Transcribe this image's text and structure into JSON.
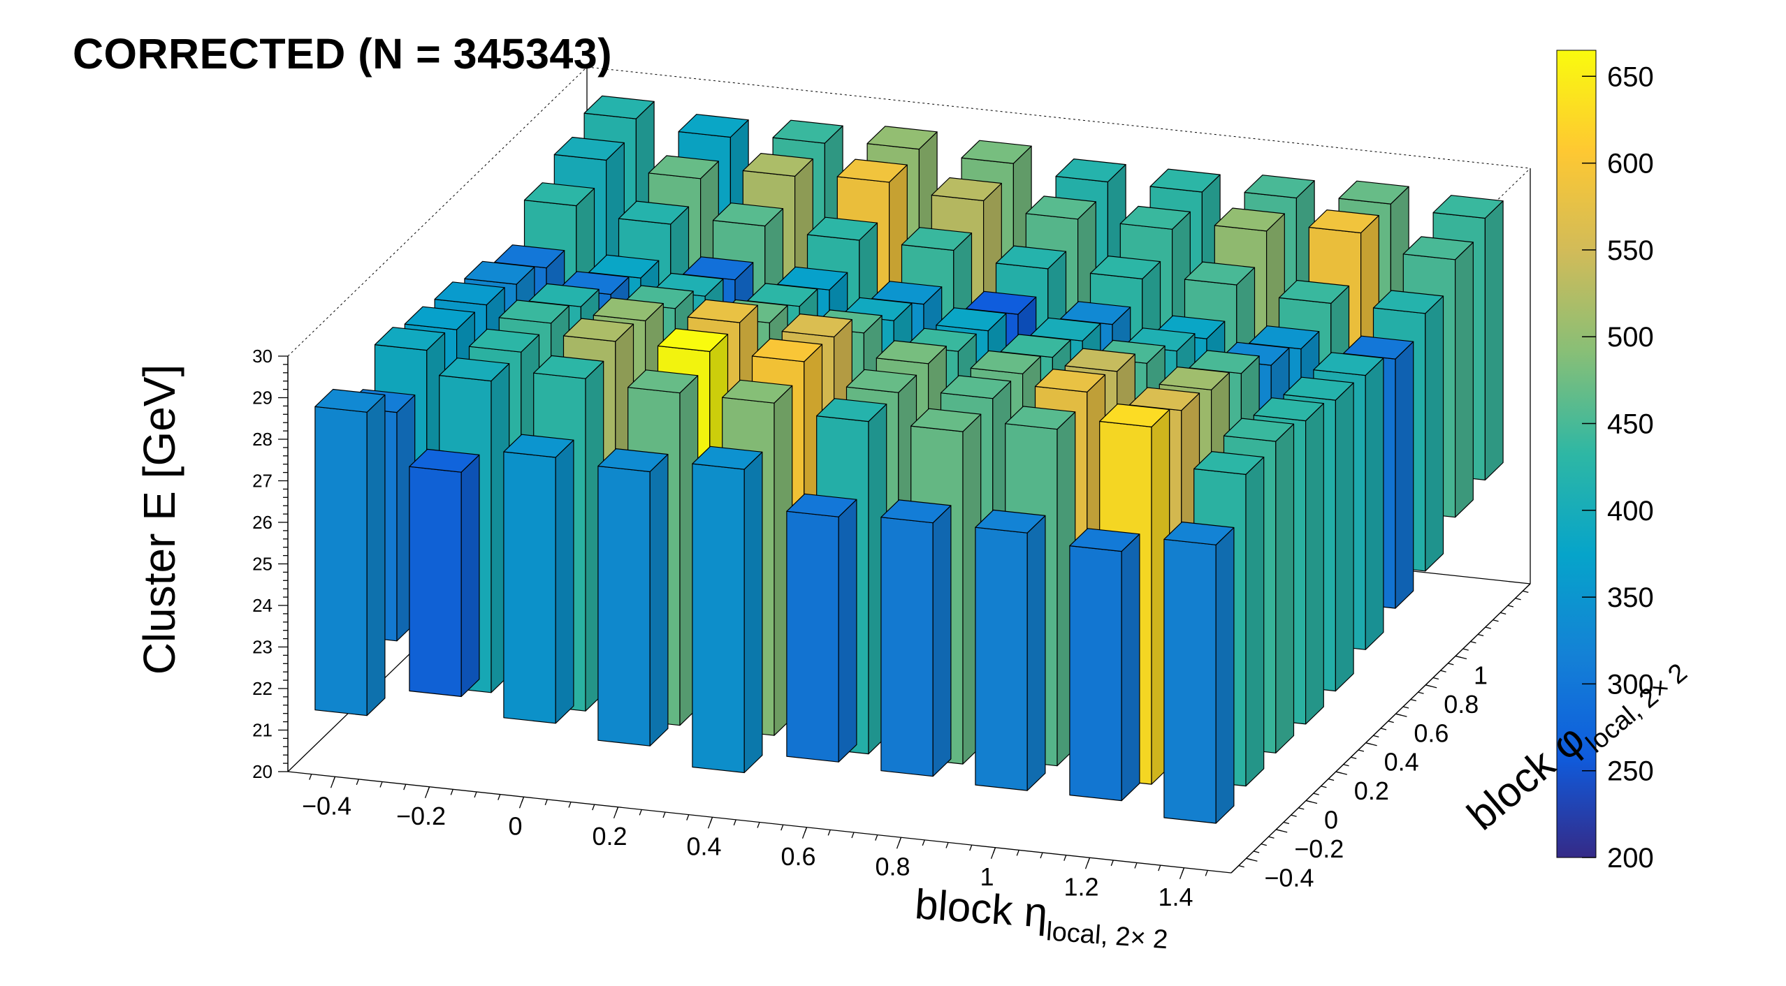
{
  "title": "CORRECTED  (N = 345343)",
  "chart_data": {
    "type": "lego3d",
    "title": "CORRECTED  (N = 345343)",
    "xlabel_main": "block η",
    "xlabel_sub": "local, 2× 2",
    "ylabel_main": "block φ",
    "ylabel_sub": "local, 2× 2",
    "zlabel": "Cluster E  [GeV]",
    "xlim": [
      -0.5,
      1.5
    ],
    "ylim": [
      -0.5,
      1.5
    ],
    "zlim": [
      20,
      30
    ],
    "x_ticks": [
      "−0.4",
      "−0.2",
      "0",
      "0.2",
      "0.4",
      "0.6",
      "0.8",
      "1",
      "1.2",
      "1.4"
    ],
    "x_tick_values": [
      -0.4,
      -0.2,
      0,
      0.2,
      0.4,
      0.6,
      0.8,
      1,
      1.2,
      1.4
    ],
    "y_ticks": [
      "−0.4",
      "−0.2",
      "0",
      "0.2",
      "0.4",
      "0.6",
      "0.8",
      "1"
    ],
    "y_tick_values": [
      -0.4,
      -0.2,
      0,
      0.2,
      0.4,
      0.6,
      0.8,
      1.0
    ],
    "z_ticks": [
      "20",
      "21",
      "22",
      "23",
      "24",
      "25",
      "26",
      "27",
      "28",
      "29",
      "30"
    ],
    "z_tick_values": [
      20,
      21,
      22,
      23,
      24,
      25,
      26,
      27,
      28,
      29,
      30
    ],
    "palette": {
      "name": "parula",
      "min": 200,
      "max": 665,
      "ticks": [
        "200",
        "250",
        "300",
        "350",
        "400",
        "450",
        "500",
        "550",
        "600",
        "650"
      ],
      "tick_values": [
        200,
        250,
        300,
        350,
        400,
        450,
        500,
        550,
        600,
        650
      ],
      "colors": [
        "#352a87",
        "#0f5cdd",
        "#1481d6",
        "#06a4ca",
        "#2eb7a4",
        "#87bf77",
        "#d1bb59",
        "#fec832",
        "#f9fb0e"
      ]
    },
    "x_bin_centers": [
      -0.4,
      -0.2,
      0.0,
      0.2,
      0.4,
      0.6,
      0.8,
      1.0,
      1.2,
      1.4
    ],
    "y_bin_centers": [
      -0.4,
      -0.2,
      0.0,
      0.2,
      0.4,
      0.6,
      0.8,
      1.0,
      1.2,
      1.4
    ],
    "cells": [
      {
        "x": -0.4,
        "y": -0.4,
        "zlo": 21.4,
        "zhi": 28.7,
        "n": 330
      },
      {
        "x": -0.2,
        "y": -0.4,
        "zlo": 22.1,
        "zhi": 27.5,
        "n": 270
      },
      {
        "x": 0.0,
        "y": -0.4,
        "zlo": 21.7,
        "zhi": 28.1,
        "n": 350
      },
      {
        "x": 0.2,
        "y": -0.4,
        "zlo": 21.4,
        "zhi": 28.0,
        "n": 335
      },
      {
        "x": 0.4,
        "y": -0.4,
        "zlo": 21.0,
        "zhi": 28.3,
        "n": 345
      },
      {
        "x": 0.6,
        "y": -0.4,
        "zlo": 21.5,
        "zhi": 27.4,
        "n": 300
      },
      {
        "x": 0.8,
        "y": -0.4,
        "zlo": 21.4,
        "zhi": 27.5,
        "n": 310
      },
      {
        "x": 1.0,
        "y": -0.4,
        "zlo": 21.3,
        "zhi": 27.5,
        "n": 320
      },
      {
        "x": 1.2,
        "y": -0.4,
        "zlo": 21.3,
        "zhi": 27.3,
        "n": 305
      },
      {
        "x": 1.4,
        "y": -0.4,
        "zlo": 21.0,
        "zhi": 27.7,
        "n": 320
      },
      {
        "x": -0.4,
        "y": -0.2,
        "zlo": 22.5,
        "zhi": 28.0,
        "n": 310
      },
      {
        "x": -0.2,
        "y": -0.2,
        "zlo": 21.5,
        "zhi": 29.0,
        "n": 400
      },
      {
        "x": 0.0,
        "y": -0.2,
        "zlo": 21.3,
        "zhi": 29.3,
        "n": 430
      },
      {
        "x": 0.2,
        "y": -0.2,
        "zlo": 21.2,
        "zhi": 29.2,
        "n": 470
      },
      {
        "x": 0.4,
        "y": -0.2,
        "zlo": 21.2,
        "zhi": 29.2,
        "n": 490
      },
      {
        "x": 0.6,
        "y": -0.2,
        "zlo": 21.0,
        "zhi": 29.0,
        "n": 420
      },
      {
        "x": 0.8,
        "y": -0.2,
        "zlo": 21.0,
        "zhi": 29.0,
        "n": 470
      },
      {
        "x": 1.0,
        "y": -0.2,
        "zlo": 21.2,
        "zhi": 29.3,
        "n": 460
      },
      {
        "x": 1.2,
        "y": -0.2,
        "zlo": 21.0,
        "zhi": 29.6,
        "n": 630
      },
      {
        "x": 1.4,
        "y": -0.2,
        "zlo": 21.2,
        "zhi": 28.7,
        "n": 430
      },
      {
        "x": -0.4,
        "y": 0.0,
        "zlo": 22.2,
        "zhi": 28.8,
        "n": 390
      },
      {
        "x": -0.2,
        "y": 0.0,
        "zlo": 21.5,
        "zhi": 29.0,
        "n": 430
      },
      {
        "x": 0.0,
        "y": 0.0,
        "zlo": 21.2,
        "zhi": 29.5,
        "n": 520
      },
      {
        "x": 0.2,
        "y": 0.0,
        "zlo": 21.0,
        "zhi": 29.5,
        "n": 665
      },
      {
        "x": 0.4,
        "y": 0.0,
        "zlo": 21.0,
        "zhi": 29.5,
        "n": 600
      },
      {
        "x": 0.6,
        "y": 0.0,
        "zlo": 21.0,
        "zhi": 29.0,
        "n": 470
      },
      {
        "x": 0.8,
        "y": 0.0,
        "zlo": 21.0,
        "zhi": 29.1,
        "n": 460
      },
      {
        "x": 1.0,
        "y": 0.0,
        "zlo": 21.0,
        "zhi": 29.5,
        "n": 580
      },
      {
        "x": 1.2,
        "y": 0.0,
        "zlo": 21.0,
        "zhi": 29.3,
        "n": 560
      },
      {
        "x": 1.4,
        "y": 0.0,
        "zlo": 21.3,
        "zhi": 28.8,
        "n": 440
      },
      {
        "x": -0.4,
        "y": 0.2,
        "zlo": 22.5,
        "zhi": 28.6,
        "n": 370
      },
      {
        "x": -0.2,
        "y": 0.2,
        "zlo": 21.5,
        "zhi": 29.0,
        "n": 440
      },
      {
        "x": 0.0,
        "y": 0.2,
        "zlo": 21.2,
        "zhi": 29.3,
        "n": 500
      },
      {
        "x": 0.2,
        "y": 0.2,
        "zlo": 21.0,
        "zhi": 29.5,
        "n": 580
      },
      {
        "x": 0.4,
        "y": 0.2,
        "zlo": 21.0,
        "zhi": 29.4,
        "n": 560
      },
      {
        "x": 0.6,
        "y": 0.2,
        "zlo": 21.0,
        "zhi": 29.0,
        "n": 480
      },
      {
        "x": 0.8,
        "y": 0.2,
        "zlo": 21.0,
        "zhi": 29.0,
        "n": 470
      },
      {
        "x": 1.0,
        "y": 0.2,
        "zlo": 21.0,
        "zhi": 29.3,
        "n": 540
      },
      {
        "x": 1.2,
        "y": 0.2,
        "zlo": 21.0,
        "zhi": 29.1,
        "n": 510
      },
      {
        "x": 1.4,
        "y": 0.2,
        "zlo": 21.3,
        "zhi": 28.6,
        "n": 430
      },
      {
        "x": -0.4,
        "y": 0.4,
        "zlo": 22.6,
        "zhi": 28.5,
        "n": 360
      },
      {
        "x": -0.2,
        "y": 0.4,
        "zlo": 21.8,
        "zhi": 28.7,
        "n": 420
      },
      {
        "x": 0.0,
        "y": 0.4,
        "zlo": 21.5,
        "zhi": 28.9,
        "n": 450
      },
      {
        "x": 0.2,
        "y": 0.4,
        "zlo": 21.4,
        "zhi": 28.8,
        "n": 470
      },
      {
        "x": 0.4,
        "y": 0.4,
        "zlo": 21.4,
        "zhi": 28.8,
        "n": 460
      },
      {
        "x": 0.6,
        "y": 0.4,
        "zlo": 21.3,
        "zhi": 28.6,
        "n": 440
      },
      {
        "x": 0.8,
        "y": 0.4,
        "zlo": 21.3,
        "zhi": 28.7,
        "n": 440
      },
      {
        "x": 1.0,
        "y": 0.4,
        "zlo": 21.3,
        "zhi": 28.8,
        "n": 450
      },
      {
        "x": 1.2,
        "y": 0.4,
        "zlo": 21.2,
        "zhi": 28.8,
        "n": 450
      },
      {
        "x": 1.4,
        "y": 0.4,
        "zlo": 21.4,
        "zhi": 28.4,
        "n": 420
      },
      {
        "x": -0.4,
        "y": 0.6,
        "zlo": 22.8,
        "zhi": 28.3,
        "n": 330
      },
      {
        "x": -0.2,
        "y": 0.6,
        "zlo": 22.5,
        "zhi": 28.3,
        "n": 300
      },
      {
        "x": 0.0,
        "y": 0.6,
        "zlo": 22.0,
        "zhi": 28.5,
        "n": 410
      },
      {
        "x": 0.2,
        "y": 0.6,
        "zlo": 22.0,
        "zhi": 28.5,
        "n": 430
      },
      {
        "x": 0.4,
        "y": 0.6,
        "zlo": 21.8,
        "zhi": 28.4,
        "n": 390
      },
      {
        "x": 0.6,
        "y": 0.6,
        "zlo": 21.8,
        "zhi": 28.4,
        "n": 380
      },
      {
        "x": 0.8,
        "y": 0.6,
        "zlo": 21.8,
        "zhi": 28.4,
        "n": 400
      },
      {
        "x": 1.0,
        "y": 0.6,
        "zlo": 21.7,
        "zhi": 28.4,
        "n": 410
      },
      {
        "x": 1.2,
        "y": 0.6,
        "zlo": 21.8,
        "zhi": 28.3,
        "n": 330
      },
      {
        "x": 1.4,
        "y": 0.6,
        "zlo": 21.7,
        "zhi": 28.3,
        "n": 410
      },
      {
        "x": -0.4,
        "y": 0.8,
        "zlo": 23.0,
        "zhi": 28.0,
        "n": 300
      },
      {
        "x": -0.2,
        "y": 0.8,
        "zlo": 22.8,
        "zhi": 28.0,
        "n": 380
      },
      {
        "x": 0.0,
        "y": 0.8,
        "zlo": 22.5,
        "zhi": 28.2,
        "n": 290
      },
      {
        "x": 0.2,
        "y": 0.8,
        "zlo": 22.3,
        "zhi": 28.2,
        "n": 370
      },
      {
        "x": 0.4,
        "y": 0.8,
        "zlo": 22.2,
        "zhi": 28.1,
        "n": 350
      },
      {
        "x": 0.6,
        "y": 0.8,
        "zlo": 22.0,
        "zhi": 28.1,
        "n": 260
      },
      {
        "x": 0.8,
        "y": 0.8,
        "zlo": 22.0,
        "zhi": 28.1,
        "n": 330
      },
      {
        "x": 1.0,
        "y": 0.8,
        "zlo": 22.2,
        "zhi": 28.0,
        "n": 380
      },
      {
        "x": 1.2,
        "y": 0.8,
        "zlo": 22.0,
        "zhi": 28.0,
        "n": 350
      },
      {
        "x": 1.4,
        "y": 0.8,
        "zlo": 22.0,
        "zhi": 28.0,
        "n": 300
      },
      {
        "x": -0.4,
        "y": 1.0,
        "zlo": 23.5,
        "zhi": 28.8,
        "n": 430
      },
      {
        "x": -0.2,
        "y": 1.0,
        "zlo": 23.0,
        "zhi": 28.6,
        "n": 420
      },
      {
        "x": 0.0,
        "y": 1.0,
        "zlo": 22.7,
        "zhi": 28.8,
        "n": 460
      },
      {
        "x": 0.2,
        "y": 1.0,
        "zlo": 22.5,
        "zhi": 28.7,
        "n": 430
      },
      {
        "x": 0.4,
        "y": 1.0,
        "zlo": 22.5,
        "zhi": 28.7,
        "n": 440
      },
      {
        "x": 0.6,
        "y": 1.0,
        "zlo": 22.5,
        "zhi": 28.5,
        "n": 420
      },
      {
        "x": 0.8,
        "y": 1.0,
        "zlo": 22.4,
        "zhi": 28.5,
        "n": 430
      },
      {
        "x": 1.0,
        "y": 1.0,
        "zlo": 22.3,
        "zhi": 28.6,
        "n": 450
      },
      {
        "x": 1.2,
        "y": 1.0,
        "zlo": 22.3,
        "zhi": 28.4,
        "n": 440
      },
      {
        "x": 1.4,
        "y": 1.0,
        "zlo": 22.2,
        "zhi": 28.4,
        "n": 420
      },
      {
        "x": -0.4,
        "y": 1.2,
        "zlo": 24.0,
        "zhi": 29.2,
        "n": 400
      },
      {
        "x": -0.2,
        "y": 1.2,
        "zlo": 23.7,
        "zhi": 29.0,
        "n": 470
      },
      {
        "x": 0.0,
        "y": 1.2,
        "zlo": 23.5,
        "zhi": 29.3,
        "n": 520
      },
      {
        "x": 0.2,
        "y": 1.2,
        "zlo": 23.3,
        "zhi": 29.4,
        "n": 590
      },
      {
        "x": 0.4,
        "y": 1.2,
        "zlo": 23.2,
        "zhi": 29.2,
        "n": 530
      },
      {
        "x": 0.6,
        "y": 1.2,
        "zlo": 23.0,
        "zhi": 29.0,
        "n": 460
      },
      {
        "x": 0.8,
        "y": 1.2,
        "zlo": 22.9,
        "zhi": 29.0,
        "n": 440
      },
      {
        "x": 1.0,
        "y": 1.2,
        "zlo": 22.9,
        "zhi": 29.2,
        "n": 500
      },
      {
        "x": 1.2,
        "y": 1.2,
        "zlo": 22.8,
        "zhi": 29.4,
        "n": 590
      },
      {
        "x": 1.4,
        "y": 1.2,
        "zlo": 22.8,
        "zhi": 29.0,
        "n": 450
      },
      {
        "x": -0.4,
        "y": 1.4,
        "zlo": 24.3,
        "zhi": 29.5,
        "n": 420
      },
      {
        "x": -0.2,
        "y": 1.4,
        "zlo": 24.0,
        "zhi": 29.3,
        "n": 380
      },
      {
        "x": 0.0,
        "y": 1.4,
        "zlo": 23.8,
        "zhi": 29.4,
        "n": 440
      },
      {
        "x": 0.2,
        "y": 1.4,
        "zlo": 23.6,
        "zhi": 29.5,
        "n": 500
      },
      {
        "x": 0.4,
        "y": 1.4,
        "zlo": 23.4,
        "zhi": 29.4,
        "n": 480
      },
      {
        "x": 0.6,
        "y": 1.4,
        "zlo": 23.3,
        "zhi": 29.2,
        "n": 420
      },
      {
        "x": 0.8,
        "y": 1.4,
        "zlo": 23.2,
        "zhi": 29.2,
        "n": 430
      },
      {
        "x": 1.0,
        "y": 1.4,
        "zlo": 23.2,
        "zhi": 29.3,
        "n": 450
      },
      {
        "x": 1.2,
        "y": 1.4,
        "zlo": 23.1,
        "zhi": 29.4,
        "n": 470
      },
      {
        "x": 1.4,
        "y": 1.4,
        "zlo": 23.0,
        "zhi": 29.3,
        "n": 440
      }
    ]
  }
}
